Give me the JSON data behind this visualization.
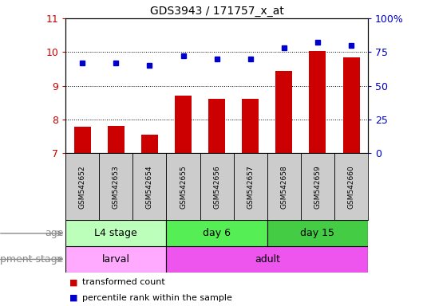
{
  "title": "GDS3943 / 171757_x_at",
  "samples": [
    "GSM542652",
    "GSM542653",
    "GSM542654",
    "GSM542655",
    "GSM542656",
    "GSM542657",
    "GSM542658",
    "GSM542659",
    "GSM542660"
  ],
  "transformed_count": [
    7.78,
    7.8,
    7.55,
    8.7,
    8.6,
    8.6,
    9.45,
    10.02,
    9.85
  ],
  "percentile_rank": [
    67,
    67,
    65,
    72,
    70,
    70,
    78,
    82,
    80
  ],
  "ylim_left": [
    7,
    11
  ],
  "ylim_right": [
    0,
    100
  ],
  "yticks_left": [
    7,
    8,
    9,
    10,
    11
  ],
  "yticks_right": [
    0,
    25,
    50,
    75,
    100
  ],
  "ytick_labels_right": [
    "0",
    "25",
    "50",
    "75",
    "100%"
  ],
  "bar_color": "#cc0000",
  "dot_color": "#0000cc",
  "grid_color": "#000000",
  "bg_color": "#ffffff",
  "sample_bg": "#cccccc",
  "age_groups": [
    {
      "label": "L4 stage",
      "start": 0,
      "end": 3,
      "color": "#bbffbb"
    },
    {
      "label": "day 6",
      "start": 3,
      "end": 6,
      "color": "#55ee55"
    },
    {
      "label": "day 15",
      "start": 6,
      "end": 9,
      "color": "#44cc44"
    }
  ],
  "dev_groups": [
    {
      "label": "larval",
      "start": 0,
      "end": 3,
      "color": "#ffaaff"
    },
    {
      "label": "adult",
      "start": 3,
      "end": 9,
      "color": "#ee55ee"
    }
  ],
  "age_label": "age",
  "dev_label": "development stage",
  "legend_items": [
    {
      "label": "transformed count",
      "color": "#cc0000"
    },
    {
      "label": "percentile rank within the sample",
      "color": "#0000cc"
    }
  ]
}
